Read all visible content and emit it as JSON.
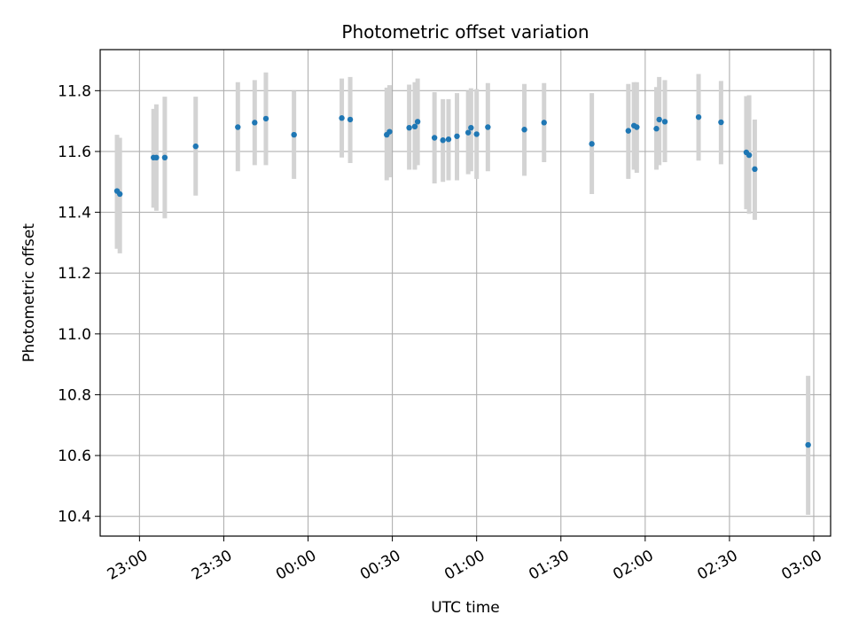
{
  "chart_data": {
    "type": "scatter",
    "title": "Photometric offset variation",
    "xlabel": "UTC time",
    "ylabel": "Photometric offset",
    "grid": true,
    "x_range": [
      "22:46",
      "03:06"
    ],
    "ylim": [
      10.335,
      11.935
    ],
    "x_ticks": [
      "23:00",
      "23:30",
      "00:00",
      "00:30",
      "01:00",
      "01:30",
      "02:00",
      "02:30",
      "03:00"
    ],
    "y_ticks": [
      10.4,
      10.6,
      10.8,
      11.0,
      11.2,
      11.4,
      11.6,
      11.8
    ],
    "colors": {
      "point": "#1f77b4",
      "errorbar": "#d3d3d3",
      "grid": "#b0b0b0"
    },
    "points": [
      {
        "x": "22:52",
        "y": 11.47,
        "ylo": 11.28,
        "yhi": 11.655
      },
      {
        "x": "22:53",
        "y": 11.46,
        "ylo": 11.265,
        "yhi": 11.645
      },
      {
        "x": "23:05",
        "y": 11.58,
        "ylo": 11.415,
        "yhi": 11.74
      },
      {
        "x": "23:06",
        "y": 11.58,
        "ylo": 11.405,
        "yhi": 11.755
      },
      {
        "x": "23:09",
        "y": 11.58,
        "ylo": 11.38,
        "yhi": 11.78
      },
      {
        "x": "23:20",
        "y": 11.617,
        "ylo": 11.455,
        "yhi": 11.78
      },
      {
        "x": "23:35",
        "y": 11.68,
        "ylo": 11.535,
        "yhi": 11.828
      },
      {
        "x": "23:41",
        "y": 11.695,
        "ylo": 11.555,
        "yhi": 11.835
      },
      {
        "x": "23:45",
        "y": 11.708,
        "ylo": 11.555,
        "yhi": 11.86
      },
      {
        "x": "23:55",
        "y": 11.655,
        "ylo": 11.51,
        "yhi": 11.8
      },
      {
        "x": "00:12",
        "y": 11.71,
        "ylo": 11.58,
        "yhi": 11.84
      },
      {
        "x": "00:15",
        "y": 11.705,
        "ylo": 11.562,
        "yhi": 11.845
      },
      {
        "x": "00:28",
        "y": 11.655,
        "ylo": 11.505,
        "yhi": 11.81
      },
      {
        "x": "00:29",
        "y": 11.665,
        "ylo": 11.515,
        "yhi": 11.818
      },
      {
        "x": "00:36",
        "y": 11.678,
        "ylo": 11.54,
        "yhi": 11.82
      },
      {
        "x": "00:38",
        "y": 11.682,
        "ylo": 11.54,
        "yhi": 11.828
      },
      {
        "x": "00:39",
        "y": 11.698,
        "ylo": 11.555,
        "yhi": 11.84
      },
      {
        "x": "00:45",
        "y": 11.645,
        "ylo": 11.495,
        "yhi": 11.795
      },
      {
        "x": "00:48",
        "y": 11.637,
        "ylo": 11.5,
        "yhi": 11.772
      },
      {
        "x": "00:50",
        "y": 11.64,
        "ylo": 11.505,
        "yhi": 11.772
      },
      {
        "x": "00:53",
        "y": 11.65,
        "ylo": 11.505,
        "yhi": 11.792
      },
      {
        "x": "00:57",
        "y": 11.662,
        "ylo": 11.525,
        "yhi": 11.8
      },
      {
        "x": "00:58",
        "y": 11.678,
        "ylo": 11.535,
        "yhi": 11.808
      },
      {
        "x": "01:00",
        "y": 11.657,
        "ylo": 11.51,
        "yhi": 11.805
      },
      {
        "x": "01:04",
        "y": 11.68,
        "ylo": 11.535,
        "yhi": 11.825
      },
      {
        "x": "01:17",
        "y": 11.672,
        "ylo": 11.52,
        "yhi": 11.822
      },
      {
        "x": "01:24",
        "y": 11.695,
        "ylo": 11.565,
        "yhi": 11.825
      },
      {
        "x": "01:41",
        "y": 11.625,
        "ylo": 11.46,
        "yhi": 11.792
      },
      {
        "x": "01:54",
        "y": 11.668,
        "ylo": 11.51,
        "yhi": 11.822
      },
      {
        "x": "01:56",
        "y": 11.685,
        "ylo": 11.54,
        "yhi": 11.828
      },
      {
        "x": "01:57",
        "y": 11.68,
        "ylo": 11.53,
        "yhi": 11.828
      },
      {
        "x": "02:04",
        "y": 11.675,
        "ylo": 11.54,
        "yhi": 11.812
      },
      {
        "x": "02:05",
        "y": 11.705,
        "ylo": 11.555,
        "yhi": 11.845
      },
      {
        "x": "02:07",
        "y": 11.698,
        "ylo": 11.565,
        "yhi": 11.835
      },
      {
        "x": "02:19",
        "y": 11.713,
        "ylo": 11.57,
        "yhi": 11.855
      },
      {
        "x": "02:27",
        "y": 11.696,
        "ylo": 11.558,
        "yhi": 11.832
      },
      {
        "x": "02:36",
        "y": 11.597,
        "ylo": 11.41,
        "yhi": 11.782
      },
      {
        "x": "02:37",
        "y": 11.588,
        "ylo": 11.395,
        "yhi": 11.785
      },
      {
        "x": "02:39",
        "y": 11.542,
        "ylo": 11.375,
        "yhi": 11.705
      },
      {
        "x": "02:58",
        "y": 10.635,
        "ylo": 10.405,
        "yhi": 10.862
      }
    ]
  }
}
